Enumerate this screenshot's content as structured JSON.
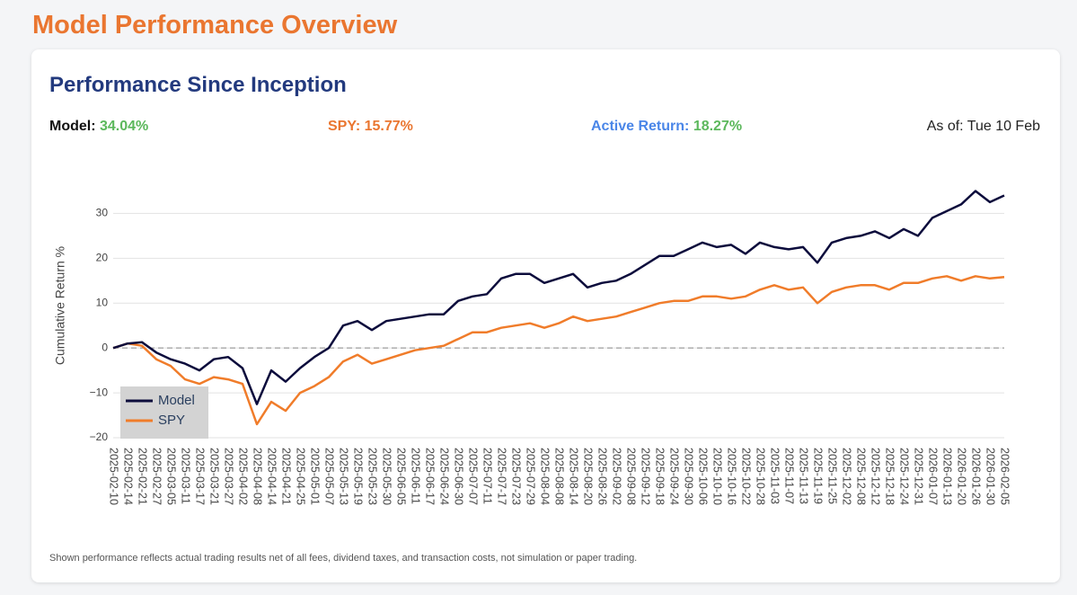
{
  "page": {
    "title": "Model Performance Overview"
  },
  "card": {
    "title": "Performance Since Inception",
    "stats": [
      {
        "label": "Model:",
        "value": "34.04%"
      },
      {
        "label": "SPY:",
        "value": "15.77%"
      },
      {
        "label": "Active Return:",
        "value": "18.27%"
      }
    ],
    "as_of": "As of: Tue 10 Feb",
    "footnote": "Shown performance reflects actual trading results net of all fees, dividend taxes, and transaction costs, not simulation or paper trading."
  },
  "chart_data": {
    "type": "line",
    "y_label": "Cumulative Return %",
    "x": [
      "2025-02-10",
      "2025-02-14",
      "2025-02-21",
      "2025-02-27",
      "2025-03-05",
      "2025-03-11",
      "2025-03-17",
      "2025-03-21",
      "2025-03-27",
      "2025-04-02",
      "2025-04-08",
      "2025-04-14",
      "2025-04-21",
      "2025-04-25",
      "2025-05-01",
      "2025-05-07",
      "2025-05-13",
      "2025-05-19",
      "2025-05-23",
      "2025-05-30",
      "2025-06-05",
      "2025-06-11",
      "2025-06-17",
      "2025-06-24",
      "2025-06-30",
      "2025-07-07",
      "2025-07-11",
      "2025-07-17",
      "2025-07-23",
      "2025-07-29",
      "2025-08-04",
      "2025-08-08",
      "2025-08-14",
      "2025-08-20",
      "2025-08-26",
      "2025-09-02",
      "2025-09-08",
      "2025-09-12",
      "2025-09-18",
      "2025-09-24",
      "2025-09-30",
      "2025-10-06",
      "2025-10-10",
      "2025-10-16",
      "2025-10-22",
      "2025-10-28",
      "2025-11-03",
      "2025-11-07",
      "2025-11-13",
      "2025-11-19",
      "2025-11-25",
      "2025-12-02",
      "2025-12-08",
      "2025-12-12",
      "2025-12-18",
      "2025-12-24",
      "2025-12-31",
      "2026-01-07",
      "2026-01-13",
      "2026-01-20",
      "2026-01-26",
      "2026-01-30",
      "2026-02-05"
    ],
    "series": [
      {
        "name": "Model",
        "color": "#0c0c3c",
        "values": [
          0,
          1,
          1.3,
          -1,
          -2.5,
          -3.5,
          -5,
          -2.5,
          -2,
          -4.5,
          -12.5,
          -5,
          -7.5,
          -4.5,
          -2,
          0,
          5,
          6,
          4,
          6,
          6.5,
          7,
          7.5,
          7.5,
          10.5,
          11.5,
          12,
          15.5,
          16.5,
          16.5,
          14.5,
          15.5,
          16.5,
          13.5,
          14.5,
          15,
          16.5,
          18.5,
          20.5,
          20.5,
          22,
          23.5,
          22.5,
          23,
          21,
          23.5,
          22.5,
          22,
          22.5,
          19,
          23.5,
          24.5,
          25,
          26,
          24.5,
          26.5,
          25,
          29,
          30.5,
          32,
          35,
          32.5,
          34
        ]
      },
      {
        "name": "SPY",
        "color": "#f07c2a",
        "values": [
          0,
          1,
          0.5,
          -2.5,
          -4,
          -7,
          -8,
          -6.5,
          -7,
          -8,
          -17,
          -12,
          -14,
          -10,
          -8.5,
          -6.5,
          -3,
          -1.5,
          -3.5,
          -2.5,
          -1.5,
          -0.5,
          0,
          0.5,
          2,
          3.5,
          3.5,
          4.5,
          5,
          5.5,
          4.5,
          5.5,
          7,
          6,
          6.5,
          7,
          8,
          9,
          10,
          10.5,
          10.5,
          11.5,
          11.5,
          11,
          11.5,
          13,
          14,
          13,
          13.5,
          10,
          12.5,
          13.5,
          14,
          14,
          13,
          14.5,
          14.5,
          15.5,
          16,
          15,
          16,
          15.5,
          15.8
        ]
      }
    ],
    "ylim": [
      -21,
      38.5
    ],
    "yticks": [
      {
        "value": -20,
        "label": "−20"
      },
      {
        "value": -10,
        "label": "−10"
      },
      0,
      10,
      20,
      30
    ],
    "grid": true,
    "zero_line": true,
    "legend": "lower left"
  }
}
